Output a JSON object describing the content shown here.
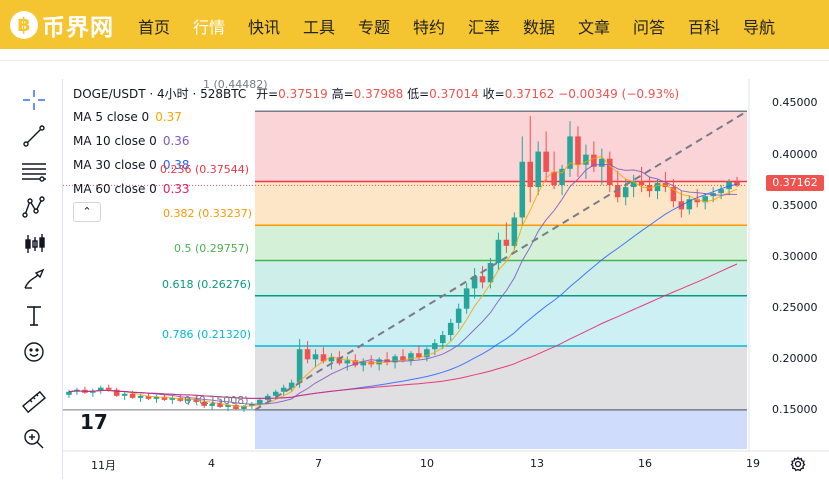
{
  "site": {
    "logo_symbol": "฿",
    "logo_name": "币界网",
    "nav": [
      {
        "label": "首页",
        "active": false
      },
      {
        "label": "行情",
        "active": true
      },
      {
        "label": "快讯",
        "active": false
      },
      {
        "label": "工具",
        "active": false
      },
      {
        "label": "专题",
        "active": false
      },
      {
        "label": "特约",
        "active": false
      },
      {
        "label": "汇率",
        "active": false
      },
      {
        "label": "数据",
        "active": false
      },
      {
        "label": "文章",
        "active": false
      },
      {
        "label": "问答",
        "active": false
      },
      {
        "label": "百科",
        "active": false
      },
      {
        "label": "导航",
        "active": false
      }
    ],
    "brand_color": "#f5c531"
  },
  "toolbar": {
    "tools": [
      "crosshair-icon",
      "trendline-icon",
      "fib-retracement-icon",
      "pattern-icon",
      "candlestick-icon",
      "brush-icon",
      "text-icon",
      "emoji-icon",
      "ruler-icon",
      "zoom-icon"
    ]
  },
  "header": {
    "symbol": "DOGE/USDT · 4小时 · 528BTC",
    "open_label": "开=",
    "open": "0.37519",
    "high_label": "高=",
    "high": "0.37988",
    "low_label": "低=",
    "low": "0.37014",
    "close_label": "收=",
    "close": "0.37162",
    "change": "−0.00349 (−0.93%)"
  },
  "indicators": [
    {
      "label": "MA 5 close 0",
      "value": "0.37",
      "color": "#f7a600"
    },
    {
      "label": "MA 10 close 0",
      "value": "0.36",
      "color": "#7e57c2"
    },
    {
      "label": "MA 30 close 0",
      "value": "0.38",
      "color": "#2962ff"
    },
    {
      "label": "MA 60 close 0",
      "value": "0.33",
      "color": "#e91e63"
    }
  ],
  "collapse_symbol": "⌃",
  "fib_levels": [
    {
      "label": "1 (0.44482)",
      "level": 1,
      "value": 0.44482,
      "color": "#787b86",
      "fill": "#fbd4d8"
    },
    {
      "label": "0.236 (0.37544)",
      "level": 0.236,
      "value": 0.37544,
      "color": "#f23645",
      "fill": "#fde6c8"
    },
    {
      "label": "0.382 (0.33237)",
      "level": 0.382,
      "value": 0.33237,
      "color": "#ff9800",
      "fill": "#d4f0d7"
    },
    {
      "label": "0.5 (0.29757)",
      "level": 0.5,
      "value": 0.29757,
      "color": "#4caf50",
      "fill": "#cdeee9"
    },
    {
      "label": "0.618 (0.26276)",
      "level": 0.618,
      "value": 0.26276,
      "color": "#089981",
      "fill": "#cdf0f5"
    },
    {
      "label": "0.786 (0.21320)",
      "level": 0.786,
      "value": 0.2132,
      "color": "#00bcd4",
      "fill": "#e0e0e3"
    },
    {
      "label": "0 (0.15008)",
      "level": 0,
      "value": 0.15008,
      "color": "#787b86",
      "fill": "#cfdcfb"
    }
  ],
  "price_axis": {
    "ticks": [
      "0.45000",
      "0.40000",
      "0.35000",
      "0.30000",
      "0.25000",
      "0.20000",
      "0.15000"
    ],
    "tick_values": [
      0.45,
      0.4,
      0.35,
      0.3,
      0.25,
      0.2,
      0.15
    ],
    "last_price": "0.37162",
    "last_price_value": 0.37162,
    "last_price_color": "#ef5350"
  },
  "time_axis": {
    "labels": [
      "11月",
      "4",
      "7",
      "10",
      "13",
      "16",
      "19"
    ]
  },
  "tv_logo": "17",
  "chart_data": {
    "type": "candlestick",
    "title": "DOGE/USDT · 4小时 · 528BTC",
    "ylim": [
      0.11,
      0.48
    ],
    "candles": [
      [
        0.165,
        0.17,
        0.162,
        0.168
      ],
      [
        0.168,
        0.172,
        0.165,
        0.17
      ],
      [
        0.17,
        0.173,
        0.166,
        0.167
      ],
      [
        0.167,
        0.171,
        0.163,
        0.169
      ],
      [
        0.169,
        0.174,
        0.166,
        0.172
      ],
      [
        0.172,
        0.175,
        0.168,
        0.17
      ],
      [
        0.17,
        0.172,
        0.163,
        0.164
      ],
      [
        0.164,
        0.168,
        0.16,
        0.166
      ],
      [
        0.166,
        0.169,
        0.161,
        0.162
      ],
      [
        0.162,
        0.166,
        0.158,
        0.164
      ],
      [
        0.164,
        0.167,
        0.16,
        0.161
      ],
      [
        0.161,
        0.165,
        0.157,
        0.163
      ],
      [
        0.163,
        0.166,
        0.159,
        0.16
      ],
      [
        0.16,
        0.164,
        0.156,
        0.162
      ],
      [
        0.162,
        0.165,
        0.158,
        0.159
      ],
      [
        0.159,
        0.162,
        0.155,
        0.161
      ],
      [
        0.161,
        0.164,
        0.157,
        0.158
      ],
      [
        0.158,
        0.161,
        0.152,
        0.154
      ],
      [
        0.154,
        0.158,
        0.15,
        0.156
      ],
      [
        0.156,
        0.16,
        0.152,
        0.153
      ],
      [
        0.153,
        0.157,
        0.149,
        0.155
      ],
      [
        0.155,
        0.158,
        0.15,
        0.151
      ],
      [
        0.151,
        0.155,
        0.148,
        0.154
      ],
      [
        0.154,
        0.158,
        0.151,
        0.156
      ],
      [
        0.156,
        0.162,
        0.153,
        0.16
      ],
      [
        0.16,
        0.166,
        0.157,
        0.164
      ],
      [
        0.164,
        0.17,
        0.16,
        0.168
      ],
      [
        0.168,
        0.175,
        0.164,
        0.172
      ],
      [
        0.172,
        0.18,
        0.168,
        0.177
      ],
      [
        0.177,
        0.22,
        0.172,
        0.21
      ],
      [
        0.21,
        0.218,
        0.196,
        0.2
      ],
      [
        0.2,
        0.21,
        0.192,
        0.205
      ],
      [
        0.205,
        0.212,
        0.196,
        0.198
      ],
      [
        0.198,
        0.206,
        0.19,
        0.202
      ],
      [
        0.202,
        0.208,
        0.194,
        0.196
      ],
      [
        0.196,
        0.203,
        0.189,
        0.199
      ],
      [
        0.199,
        0.205,
        0.192,
        0.194
      ],
      [
        0.194,
        0.201,
        0.188,
        0.198
      ],
      [
        0.198,
        0.204,
        0.192,
        0.195
      ],
      [
        0.195,
        0.202,
        0.189,
        0.2
      ],
      [
        0.2,
        0.207,
        0.194,
        0.197
      ],
      [
        0.197,
        0.205,
        0.191,
        0.203
      ],
      [
        0.203,
        0.21,
        0.197,
        0.199
      ],
      [
        0.199,
        0.208,
        0.194,
        0.206
      ],
      [
        0.206,
        0.214,
        0.2,
        0.202
      ],
      [
        0.202,
        0.212,
        0.198,
        0.21
      ],
      [
        0.21,
        0.22,
        0.204,
        0.216
      ],
      [
        0.216,
        0.228,
        0.21,
        0.224
      ],
      [
        0.224,
        0.24,
        0.218,
        0.236
      ],
      [
        0.236,
        0.255,
        0.23,
        0.25
      ],
      [
        0.25,
        0.275,
        0.245,
        0.27
      ],
      [
        0.27,
        0.29,
        0.26,
        0.282
      ],
      [
        0.282,
        0.292,
        0.27,
        0.276
      ],
      [
        0.276,
        0.3,
        0.27,
        0.295
      ],
      [
        0.295,
        0.325,
        0.288,
        0.318
      ],
      [
        0.318,
        0.335,
        0.305,
        0.312
      ],
      [
        0.312,
        0.345,
        0.308,
        0.34
      ],
      [
        0.34,
        0.42,
        0.332,
        0.395
      ],
      [
        0.395,
        0.44,
        0.355,
        0.37
      ],
      [
        0.37,
        0.415,
        0.362,
        0.405
      ],
      [
        0.405,
        0.425,
        0.375,
        0.385
      ],
      [
        0.385,
        0.405,
        0.368,
        0.372
      ],
      [
        0.372,
        0.392,
        0.362,
        0.388
      ],
      [
        0.388,
        0.435,
        0.38,
        0.42
      ],
      [
        0.42,
        0.43,
        0.38,
        0.392
      ],
      [
        0.392,
        0.412,
        0.378,
        0.402
      ],
      [
        0.402,
        0.415,
        0.385,
        0.39
      ],
      [
        0.39,
        0.408,
        0.372,
        0.398
      ],
      [
        0.398,
        0.405,
        0.365,
        0.372
      ],
      [
        0.372,
        0.386,
        0.355,
        0.36
      ],
      [
        0.36,
        0.378,
        0.352,
        0.37
      ],
      [
        0.37,
        0.382,
        0.36,
        0.376
      ],
      [
        0.376,
        0.39,
        0.365,
        0.372
      ],
      [
        0.372,
        0.38,
        0.36,
        0.366
      ],
      [
        0.366,
        0.378,
        0.358,
        0.374
      ],
      [
        0.374,
        0.385,
        0.365,
        0.37
      ],
      [
        0.37,
        0.378,
        0.35,
        0.356
      ],
      [
        0.356,
        0.366,
        0.34,
        0.348
      ],
      [
        0.348,
        0.362,
        0.343,
        0.358
      ],
      [
        0.358,
        0.368,
        0.35,
        0.355
      ],
      [
        0.355,
        0.364,
        0.348,
        0.361
      ],
      [
        0.361,
        0.37,
        0.355,
        0.364
      ],
      [
        0.364,
        0.372,
        0.358,
        0.368
      ],
      [
        0.368,
        0.378,
        0.362,
        0.375
      ],
      [
        0.375,
        0.38,
        0.37,
        0.3716
      ]
    ]
  }
}
